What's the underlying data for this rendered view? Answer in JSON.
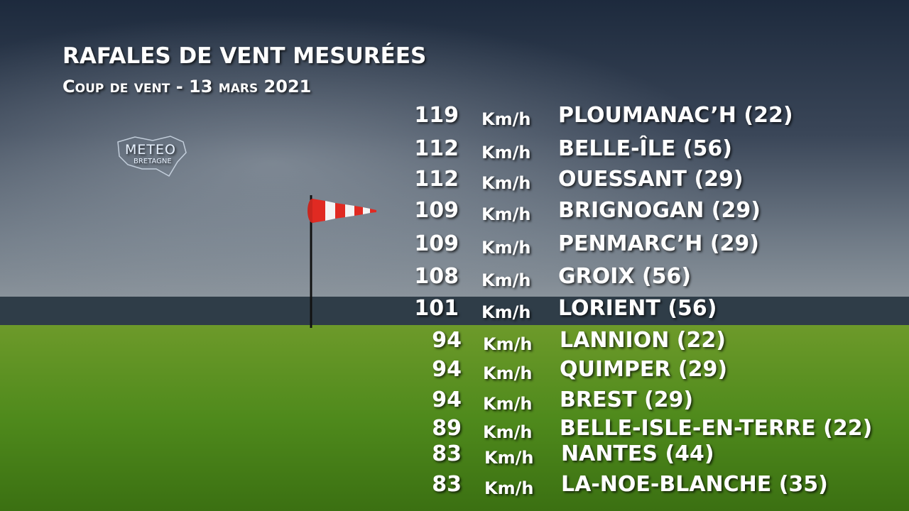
{
  "header": {
    "title": "RAFALES DE VENT MESURÉES",
    "subtitle": "Coup de vent - 13 mars 2021"
  },
  "logo": {
    "line1": "METEO",
    "line2": "BRETAGNE"
  },
  "table": {
    "rows": [
      [
        "119",
        "Km/h",
        "PLOUMANAC’H (22)"
      ],
      [
        "112",
        "Km/h",
        "BELLE-ÎLE (56)"
      ],
      [
        "112",
        "Km/h",
        "OUESSANT (29)"
      ],
      [
        "109",
        "Km/h",
        "BRIGNOGAN (29)"
      ],
      [
        "109",
        "Km/h",
        "PENMARC’H (29)"
      ],
      [
        "108",
        "Km/h",
        "GROIX (56)"
      ],
      [
        "101",
        "Km/h",
        "LORIENT (56)"
      ],
      [
        "94",
        "Km/h",
        "LANNION (22)"
      ],
      [
        "94",
        "Km/h",
        "QUIMPER (29)"
      ],
      [
        "94",
        "Km/h",
        "BREST (29)"
      ],
      [
        "89",
        "Km/h",
        "BELLE-ISLE-EN-TERRE (22)"
      ],
      [
        "83",
        "Km/h",
        "NANTES (44)"
      ],
      [
        "83",
        "Km/h",
        "LA-NOE-BLANCHE (35)"
      ]
    ]
  }
}
